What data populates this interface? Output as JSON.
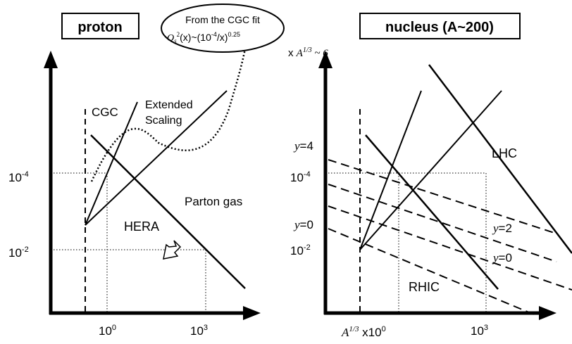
{
  "left_panel": {
    "title": "proton",
    "region_cgc": "CGC",
    "region_scaling_line1": "Extended",
    "region_scaling_line2": "Scaling",
    "region_parton": "Parton gas",
    "experiment": "HERA",
    "y_tick_upper_base": "10",
    "y_tick_upper_exp": "-4",
    "y_tick_lower_base": "10",
    "y_tick_lower_exp": "-2",
    "x_tick_left_base": "10",
    "x_tick_left_exp": "0",
    "x_tick_right_base": "10",
    "x_tick_right_exp": "3"
  },
  "callout": {
    "line1": "From the CGC fit",
    "q": "Q",
    "q_sub": "s",
    "q_sup": "2",
    "q_arg": "(x)~(10",
    "q_exp": "-4",
    "q_tail": "/x)",
    "q_power": "0.25",
    "mult_x": "x ",
    "mult_a": "A",
    "mult_exp": "1/3",
    "mult_tail": " ~ 6"
  },
  "right_panel": {
    "title": "nucleus (A~200)",
    "experiment_top": "LHC",
    "experiment_bottom": "RHIC",
    "y4_label": "y",
    "y4_value": "=4",
    "y0_left_label": "y",
    "y0_left_value": "=0",
    "y2_label": "y",
    "y2_value": "=2",
    "y0_right_label": "y",
    "y0_right_value": "=0",
    "y_tick_upper_base": "10",
    "y_tick_upper_exp": "-4",
    "y_tick_lower_base": "10",
    "y_tick_lower_exp": "-2",
    "x_tick_left_a": "A",
    "x_tick_left_a_exp": "1/3",
    "x_tick_left_mult": " x10",
    "x_tick_left_exp": "0",
    "x_tick_right_base": "10",
    "x_tick_right_exp": "3"
  }
}
